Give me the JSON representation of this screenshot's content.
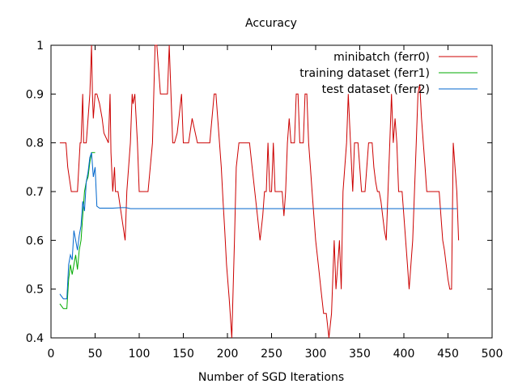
{
  "chart_data": {
    "type": "line",
    "title": "Accuracy",
    "xlabel": "Number of SGD Iterations",
    "ylabel": "",
    "xlim": [
      0,
      500
    ],
    "ylim": [
      0.4,
      1.0
    ],
    "xticks": [
      0,
      50,
      100,
      150,
      200,
      250,
      300,
      350,
      400,
      450,
      500
    ],
    "xtick_labels": [
      "0",
      "50",
      "100",
      "150",
      "200",
      "250",
      "300",
      "350",
      "400",
      "450",
      "500"
    ],
    "yticks": [
      0.4,
      0.5,
      0.6,
      0.7,
      0.8,
      0.9,
      1.0
    ],
    "ytick_labels": [
      "0.4",
      "0.5",
      "0.6",
      "0.7",
      "0.8",
      "0.9",
      "1"
    ],
    "grid": false,
    "legend_position": "top-right",
    "series": [
      {
        "name": "minibatch (ferr0)",
        "color": "#cc0000",
        "x": [
          10,
          17,
          19,
          23,
          30,
          33,
          34,
          36,
          37,
          40,
          44,
          46,
          47,
          48,
          50,
          52,
          55,
          58,
          60,
          65,
          67,
          68,
          70,
          72,
          73,
          76,
          80,
          84,
          86,
          90,
          92,
          93,
          95,
          98,
          100,
          105,
          110,
          115,
          118,
          120,
          122,
          124,
          126,
          128,
          132,
          134,
          138,
          140,
          143,
          145,
          148,
          150,
          152,
          156,
          160,
          166,
          169,
          174,
          176,
          178,
          180,
          185,
          187,
          189,
          191,
          193,
          195,
          197,
          199,
          202,
          205,
          208,
          210,
          213,
          216,
          219,
          222,
          225,
          228,
          231,
          234,
          237,
          240,
          242,
          244,
          246,
          248,
          250,
          252,
          254,
          256,
          258,
          260,
          262,
          264,
          266,
          268,
          270,
          272,
          274,
          276,
          278,
          280,
          282,
          284,
          286,
          288,
          290,
          292,
          294,
          296,
          298,
          300,
          303,
          306,
          309,
          312,
          315,
          318,
          321,
          323,
          325,
          327,
          329,
          331,
          333,
          335,
          337,
          340,
          342,
          344,
          346,
          348,
          350,
          352,
          354,
          356,
          358,
          360,
          362,
          364,
          366,
          368,
          370,
          372,
          374,
          376,
          378,
          380,
          382,
          384,
          386,
          388,
          390,
          392,
          394,
          396,
          398,
          400,
          402,
          404,
          406,
          408,
          410,
          412,
          414,
          416,
          418,
          420,
          422,
          424,
          426,
          428,
          430,
          432,
          434,
          436,
          438,
          440,
          442,
          444,
          446,
          448,
          450,
          452,
          454,
          456,
          458,
          460,
          462
        ],
        "values": [
          0.8,
          0.8,
          0.75,
          0.7,
          0.7,
          0.8,
          0.8,
          0.9,
          0.8,
          0.8,
          0.9,
          1.0,
          0.9,
          0.85,
          0.9,
          0.9,
          0.88,
          0.85,
          0.82,
          0.8,
          0.9,
          0.78,
          0.7,
          0.75,
          0.7,
          0.7,
          0.65,
          0.6,
          0.7,
          0.8,
          0.9,
          0.88,
          0.9,
          0.8,
          0.7,
          0.7,
          0.7,
          0.8,
          1.0,
          1.0,
          0.95,
          0.9,
          0.9,
          0.9,
          0.9,
          1.0,
          0.8,
          0.8,
          0.82,
          0.85,
          0.9,
          0.8,
          0.8,
          0.8,
          0.85,
          0.8,
          0.8,
          0.8,
          0.8,
          0.8,
          0.8,
          0.9,
          0.9,
          0.85,
          0.8,
          0.75,
          0.68,
          0.62,
          0.55,
          0.48,
          0.4,
          0.6,
          0.75,
          0.8,
          0.8,
          0.8,
          0.8,
          0.8,
          0.75,
          0.7,
          0.65,
          0.6,
          0.65,
          0.7,
          0.7,
          0.8,
          0.7,
          0.7,
          0.8,
          0.7,
          0.7,
          0.7,
          0.7,
          0.7,
          0.65,
          0.7,
          0.8,
          0.85,
          0.8,
          0.8,
          0.8,
          0.9,
          0.9,
          0.8,
          0.8,
          0.8,
          0.9,
          0.9,
          0.8,
          0.75,
          0.7,
          0.65,
          0.6,
          0.55,
          0.5,
          0.45,
          0.45,
          0.4,
          0.45,
          0.6,
          0.5,
          0.55,
          0.6,
          0.5,
          0.7,
          0.75,
          0.8,
          0.9,
          0.78,
          0.7,
          0.8,
          0.8,
          0.8,
          0.75,
          0.7,
          0.7,
          0.7,
          0.75,
          0.8,
          0.8,
          0.8,
          0.75,
          0.72,
          0.7,
          0.7,
          0.68,
          0.65,
          0.62,
          0.6,
          0.7,
          0.8,
          0.9,
          0.8,
          0.85,
          0.8,
          0.7,
          0.7,
          0.7,
          0.65,
          0.6,
          0.55,
          0.5,
          0.55,
          0.6,
          0.7,
          0.8,
          0.9,
          0.92,
          0.85,
          0.8,
          0.75,
          0.7,
          0.7,
          0.7,
          0.7,
          0.7,
          0.7,
          0.7,
          0.7,
          0.65,
          0.6,
          0.58,
          0.55,
          0.52,
          0.5,
          0.5,
          0.8,
          0.75,
          0.7,
          0.6
        ]
      },
      {
        "name": "training dataset (ferr1)",
        "color": "#00aa00",
        "x": [
          10,
          14,
          18,
          20,
          22,
          24,
          26,
          28,
          30,
          32,
          34,
          36,
          38,
          40,
          42,
          44,
          46,
          48,
          50
        ],
        "values": [
          0.47,
          0.46,
          0.46,
          0.52,
          0.55,
          0.53,
          0.55,
          0.57,
          0.54,
          0.58,
          0.6,
          0.65,
          0.7,
          0.72,
          0.73,
          0.76,
          0.78,
          0.78,
          0.78
        ]
      },
      {
        "name": "test dataset (ferr2)",
        "color": "#0066cc",
        "x": [
          10,
          14,
          18,
          20,
          22,
          24,
          26,
          28,
          30,
          32,
          34,
          36,
          38,
          40,
          42,
          44,
          46,
          48,
          50,
          52,
          55,
          60,
          70,
          80,
          85,
          90,
          100,
          200,
          300,
          400,
          460
        ],
        "values": [
          0.49,
          0.48,
          0.48,
          0.55,
          0.57,
          0.56,
          0.62,
          0.6,
          0.58,
          0.61,
          0.63,
          0.68,
          0.66,
          0.72,
          0.74,
          0.77,
          0.78,
          0.73,
          0.75,
          0.67,
          0.666,
          0.666,
          0.666,
          0.667,
          0.667,
          0.665,
          0.665,
          0.665,
          0.665,
          0.665,
          0.665
        ]
      }
    ]
  }
}
